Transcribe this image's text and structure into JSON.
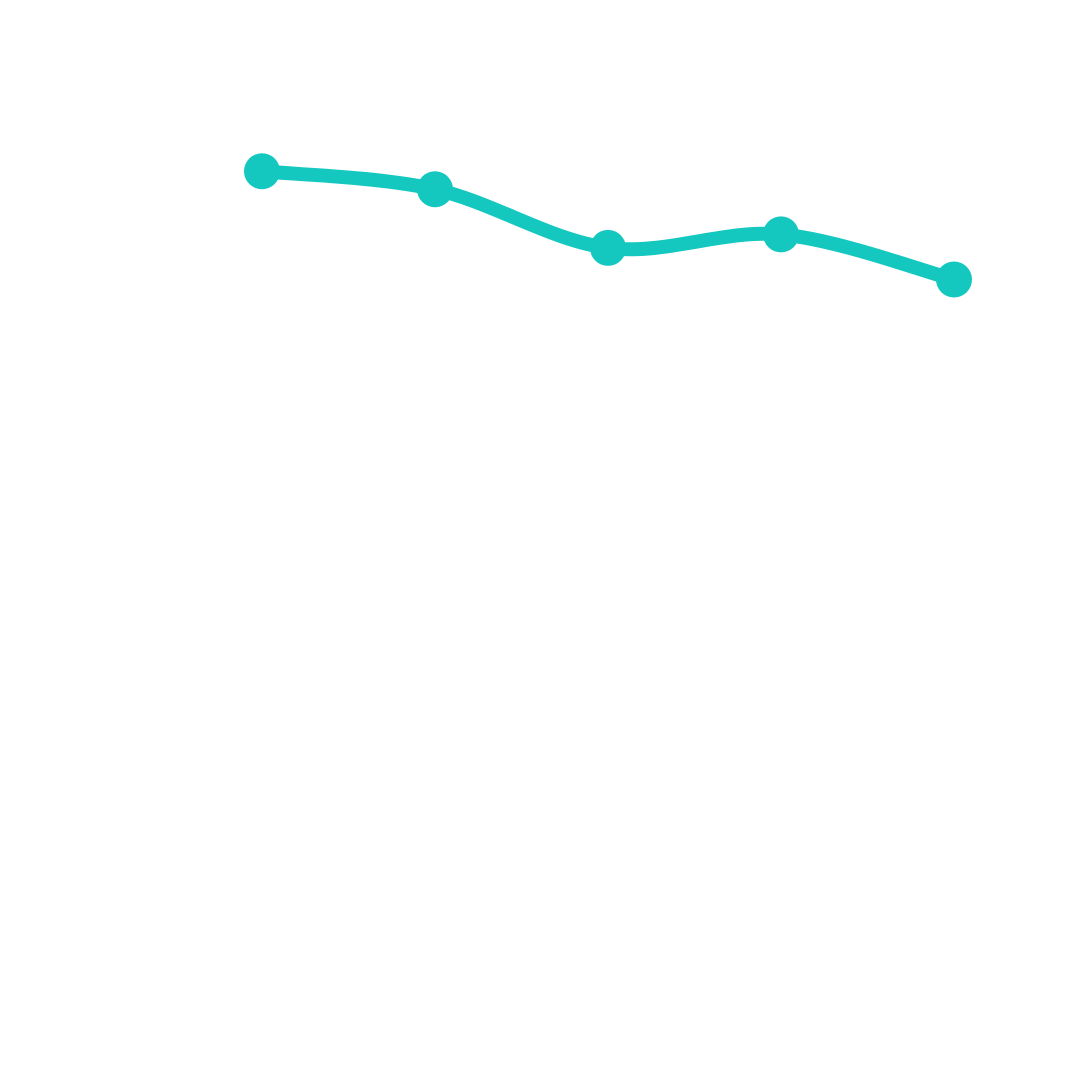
{
  "colors": {
    "background": "#ffffff",
    "series": "#14c8c0"
  },
  "chart_data": {
    "type": "line",
    "title": "",
    "xlabel": "",
    "ylabel": "",
    "categories": [
      "",
      "",
      "",
      "",
      ""
    ],
    "x": [
      1,
      2,
      3,
      4,
      5
    ],
    "series": [
      {
        "values": [
          87,
          85,
          78.5,
          80,
          75
        ],
        "color": "#14c8c0",
        "line_style": "smooth",
        "markers": true
      }
    ],
    "ylim": [
      0,
      100
    ],
    "grid": false,
    "axes_visible": false,
    "legend": "none"
  }
}
